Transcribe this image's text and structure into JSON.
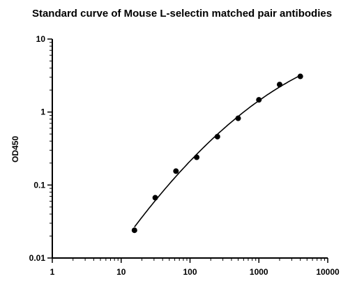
{
  "chart_data": {
    "type": "scatter",
    "title": "Standard curve of Mouse L-selectin matched pair antibodies",
    "xlabel": "",
    "ylabel": "OD450",
    "x_scale": "log",
    "y_scale": "log",
    "xlim": [
      1,
      10000
    ],
    "ylim": [
      0.01,
      10
    ],
    "x_ticks": [
      "1",
      "10",
      "100",
      "1000",
      "10000"
    ],
    "y_ticks": [
      "0.01",
      "0.1",
      "1",
      "10"
    ],
    "grid": false,
    "legend": "none",
    "series": [
      {
        "points": [
          {
            "x": 15.6,
            "y": 0.024
          },
          {
            "x": 31.25,
            "y": 0.067
          },
          {
            "x": 62.5,
            "y": 0.155
          },
          {
            "x": 125,
            "y": 0.24
          },
          {
            "x": 250,
            "y": 0.46
          },
          {
            "x": 500,
            "y": 0.82
          },
          {
            "x": 1000,
            "y": 1.47
          },
          {
            "x": 2000,
            "y": 2.38
          },
          {
            "x": 4000,
            "y": 3.08
          }
        ],
        "fit_curve": true
      }
    ],
    "colors": {
      "points": "#000000",
      "curve": "#000000",
      "axes": "#000000"
    }
  }
}
